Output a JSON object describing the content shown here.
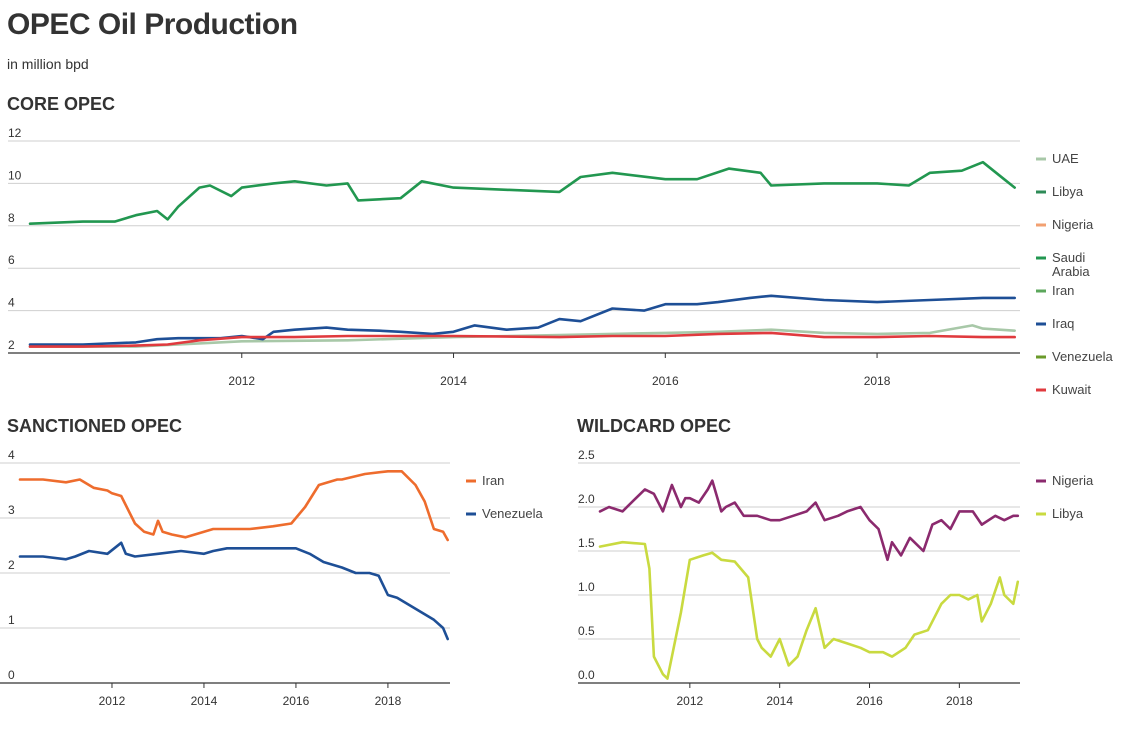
{
  "title": "OPEC Oil Production",
  "subtitle": "in million bpd",
  "chart_data": [
    {
      "type": "line",
      "title": "CORE OPEC",
      "xlabel": "",
      "ylabel": "",
      "xlim": [
        2010.0,
        2019.35
      ],
      "ylim": [
        2,
        12
      ],
      "yticks": [
        2,
        4,
        6,
        8,
        10,
        12
      ],
      "xticks": [
        2012,
        2014,
        2016,
        2018
      ],
      "grid": true,
      "legend": "right",
      "series": [
        {
          "name": "UAE",
          "color": "#a8c8a8",
          "x": [
            2010.0,
            2011.0,
            2012.0,
            2013.0,
            2014.0,
            2015.0,
            2015.5,
            2016.0,
            2016.5,
            2017.0,
            2017.5,
            2018.0,
            2018.5,
            2018.9,
            2019.0,
            2019.3
          ],
          "values": [
            2.3,
            2.3,
            2.55,
            2.6,
            2.75,
            2.85,
            2.9,
            2.95,
            3.0,
            3.1,
            2.95,
            2.9,
            2.95,
            3.3,
            3.15,
            3.05
          ]
        },
        {
          "name": "Libya",
          "color": "#2e8b57",
          "x": [],
          "values": []
        },
        {
          "name": "Nigeria",
          "color": "#f2a071",
          "x": [],
          "values": []
        },
        {
          "name": "Saudi Arabia",
          "color": "#229750",
          "x": [
            2010.0,
            2010.5,
            2010.8,
            2011.0,
            2011.2,
            2011.3,
            2011.4,
            2011.6,
            2011.7,
            2011.9,
            2012.0,
            2012.3,
            2012.5,
            2012.8,
            2013.0,
            2013.1,
            2013.5,
            2013.7,
            2014.0,
            2014.5,
            2015.0,
            2015.2,
            2015.5,
            2016.0,
            2016.3,
            2016.6,
            2016.9,
            2017.0,
            2017.5,
            2018.0,
            2018.3,
            2018.5,
            2018.8,
            2019.0,
            2019.2,
            2019.3
          ],
          "values": [
            8.1,
            8.2,
            8.2,
            8.5,
            8.7,
            8.3,
            8.9,
            9.8,
            9.9,
            9.4,
            9.8,
            10.0,
            10.1,
            9.9,
            10.0,
            9.2,
            9.3,
            10.1,
            9.8,
            9.7,
            9.6,
            10.3,
            10.5,
            10.2,
            10.2,
            10.7,
            10.5,
            9.9,
            10.0,
            10.0,
            9.9,
            10.5,
            10.6,
            11.0,
            10.2,
            9.8
          ]
        },
        {
          "name": "Iran",
          "color": "#5ca75c",
          "x": [],
          "values": []
        },
        {
          "name": "Iraq",
          "color": "#1e4f96",
          "x": [
            2010.0,
            2010.5,
            2011.0,
            2011.2,
            2011.4,
            2011.8,
            2012.0,
            2012.2,
            2012.3,
            2012.5,
            2012.8,
            2013.0,
            2013.3,
            2013.5,
            2013.8,
            2014.0,
            2014.2,
            2014.5,
            2014.8,
            2015.0,
            2015.2,
            2015.5,
            2015.8,
            2016.0,
            2016.3,
            2016.5,
            2016.8,
            2017.0,
            2017.5,
            2018.0,
            2018.5,
            2019.0,
            2019.3
          ],
          "values": [
            2.4,
            2.4,
            2.5,
            2.65,
            2.7,
            2.7,
            2.8,
            2.65,
            3.0,
            3.1,
            3.2,
            3.1,
            3.05,
            3.0,
            2.9,
            3.0,
            3.3,
            3.1,
            3.2,
            3.6,
            3.5,
            4.1,
            4.0,
            4.3,
            4.3,
            4.4,
            4.6,
            4.7,
            4.5,
            4.4,
            4.5,
            4.6,
            4.6
          ]
        },
        {
          "name": "Venezuela",
          "color": "#6a9a2a",
          "x": [],
          "values": []
        },
        {
          "name": "Kuwait",
          "color": "#e03a3e",
          "x": [
            2010.0,
            2010.5,
            2011.0,
            2011.3,
            2011.6,
            2012.0,
            2012.5,
            2013.0,
            2014.0,
            2015.0,
            2015.5,
            2016.0,
            2016.5,
            2017.0,
            2017.5,
            2018.0,
            2018.5,
            2019.0,
            2019.3
          ],
          "values": [
            2.3,
            2.3,
            2.35,
            2.4,
            2.6,
            2.75,
            2.75,
            2.8,
            2.8,
            2.75,
            2.8,
            2.8,
            2.9,
            2.95,
            2.75,
            2.75,
            2.8,
            2.75,
            2.75
          ]
        }
      ]
    },
    {
      "type": "line",
      "title": "SANCTIONED OPEC",
      "xlabel": "",
      "ylabel": "",
      "xlim": [
        2010.0,
        2019.35
      ],
      "ylim": [
        0,
        4
      ],
      "yticks": [
        0,
        1,
        2,
        3,
        4
      ],
      "xticks": [
        2012,
        2014,
        2016,
        2018
      ],
      "grid": true,
      "legend": "right",
      "series": [
        {
          "name": "Iran",
          "color": "#ee6c2d",
          "x": [
            2010.0,
            2010.5,
            2011.0,
            2011.3,
            2011.6,
            2011.9,
            2012.0,
            2012.2,
            2012.5,
            2012.7,
            2012.9,
            2013.0,
            2013.1,
            2013.3,
            2013.6,
            2013.8,
            2014.0,
            2014.2,
            2014.5,
            2015.0,
            2015.5,
            2015.9,
            2016.0,
            2016.2,
            2016.5,
            2016.9,
            2017.0,
            2017.5,
            2018.0,
            2018.3,
            2018.6,
            2018.8,
            2019.0,
            2019.2,
            2019.3
          ],
          "values": [
            3.7,
            3.7,
            3.65,
            3.7,
            3.55,
            3.5,
            3.45,
            3.4,
            2.9,
            2.75,
            2.7,
            2.95,
            2.75,
            2.7,
            2.65,
            2.7,
            2.75,
            2.8,
            2.8,
            2.8,
            2.85,
            2.9,
            3.0,
            3.2,
            3.6,
            3.7,
            3.7,
            3.8,
            3.85,
            3.85,
            3.6,
            3.3,
            2.8,
            2.75,
            2.6
          ]
        },
        {
          "name": "Venezuela",
          "color": "#1e4f96",
          "x": [
            2010.0,
            2010.5,
            2011.0,
            2011.2,
            2011.5,
            2011.9,
            2012.2,
            2012.3,
            2012.5,
            2013.0,
            2013.5,
            2014.0,
            2014.2,
            2014.5,
            2015.0,
            2015.5,
            2016.0,
            2016.3,
            2016.6,
            2017.0,
            2017.3,
            2017.6,
            2017.8,
            2018.0,
            2018.2,
            2018.5,
            2018.8,
            2019.0,
            2019.2,
            2019.3
          ],
          "values": [
            2.3,
            2.3,
            2.25,
            2.3,
            2.4,
            2.35,
            2.55,
            2.35,
            2.3,
            2.35,
            2.4,
            2.35,
            2.4,
            2.45,
            2.45,
            2.45,
            2.45,
            2.35,
            2.2,
            2.1,
            2.0,
            2.0,
            1.95,
            1.6,
            1.55,
            1.4,
            1.25,
            1.15,
            1.0,
            0.8
          ]
        }
      ]
    },
    {
      "type": "line",
      "title": "WILDCARD OPEC",
      "xlabel": "",
      "ylabel": "",
      "xlim": [
        2010.0,
        2019.35
      ],
      "ylim": [
        0,
        2.5
      ],
      "yticks": [
        "0.0",
        "0.5",
        "1.0",
        "1.5",
        "2.0",
        "2.5"
      ],
      "xticks": [
        2012,
        2014,
        2016,
        2018
      ],
      "grid": true,
      "legend": "right",
      "series": [
        {
          "name": "Nigeria",
          "color": "#8b2a6e",
          "x": [
            2010.0,
            2010.2,
            2010.5,
            2010.8,
            2011.0,
            2011.2,
            2011.4,
            2011.6,
            2011.8,
            2011.9,
            2012.0,
            2012.2,
            2012.4,
            2012.5,
            2012.7,
            2012.8,
            2013.0,
            2013.2,
            2013.5,
            2013.8,
            2014.0,
            2014.3,
            2014.6,
            2014.8,
            2015.0,
            2015.3,
            2015.5,
            2015.8,
            2016.0,
            2016.2,
            2016.4,
            2016.5,
            2016.7,
            2016.9,
            2017.0,
            2017.2,
            2017.4,
            2017.6,
            2017.8,
            2018.0,
            2018.3,
            2018.5,
            2018.8,
            2019.0,
            2019.2,
            2019.3
          ],
          "values": [
            1.95,
            2.0,
            1.95,
            2.1,
            2.2,
            2.15,
            1.95,
            2.25,
            2.0,
            2.1,
            2.1,
            2.05,
            2.2,
            2.3,
            1.95,
            2.0,
            2.05,
            1.9,
            1.9,
            1.85,
            1.85,
            1.9,
            1.95,
            2.05,
            1.85,
            1.9,
            1.95,
            2.0,
            1.85,
            1.75,
            1.4,
            1.6,
            1.45,
            1.65,
            1.6,
            1.5,
            1.8,
            1.85,
            1.75,
            1.95,
            1.95,
            1.8,
            1.9,
            1.85,
            1.9,
            1.9
          ]
        },
        {
          "name": "Libya",
          "color": "#c9da40",
          "x": [
            2010.0,
            2010.5,
            2011.0,
            2011.1,
            2011.2,
            2011.4,
            2011.5,
            2011.6,
            2011.8,
            2012.0,
            2012.3,
            2012.5,
            2012.7,
            2013.0,
            2013.3,
            2013.5,
            2013.6,
            2013.8,
            2014.0,
            2014.2,
            2014.4,
            2014.6,
            2014.8,
            2015.0,
            2015.2,
            2015.5,
            2015.8,
            2016.0,
            2016.3,
            2016.5,
            2016.8,
            2017.0,
            2017.3,
            2017.6,
            2017.8,
            2018.0,
            2018.2,
            2018.4,
            2018.5,
            2018.7,
            2018.9,
            2019.0,
            2019.2,
            2019.3
          ],
          "values": [
            1.55,
            1.6,
            1.58,
            1.3,
            0.3,
            0.1,
            0.05,
            0.3,
            0.8,
            1.4,
            1.45,
            1.48,
            1.4,
            1.38,
            1.2,
            0.5,
            0.4,
            0.3,
            0.5,
            0.2,
            0.3,
            0.6,
            0.85,
            0.4,
            0.5,
            0.45,
            0.4,
            0.35,
            0.35,
            0.3,
            0.4,
            0.55,
            0.6,
            0.9,
            1.0,
            1.0,
            0.95,
            1.0,
            0.7,
            0.9,
            1.2,
            1.0,
            0.9,
            1.15
          ]
        }
      ]
    }
  ]
}
